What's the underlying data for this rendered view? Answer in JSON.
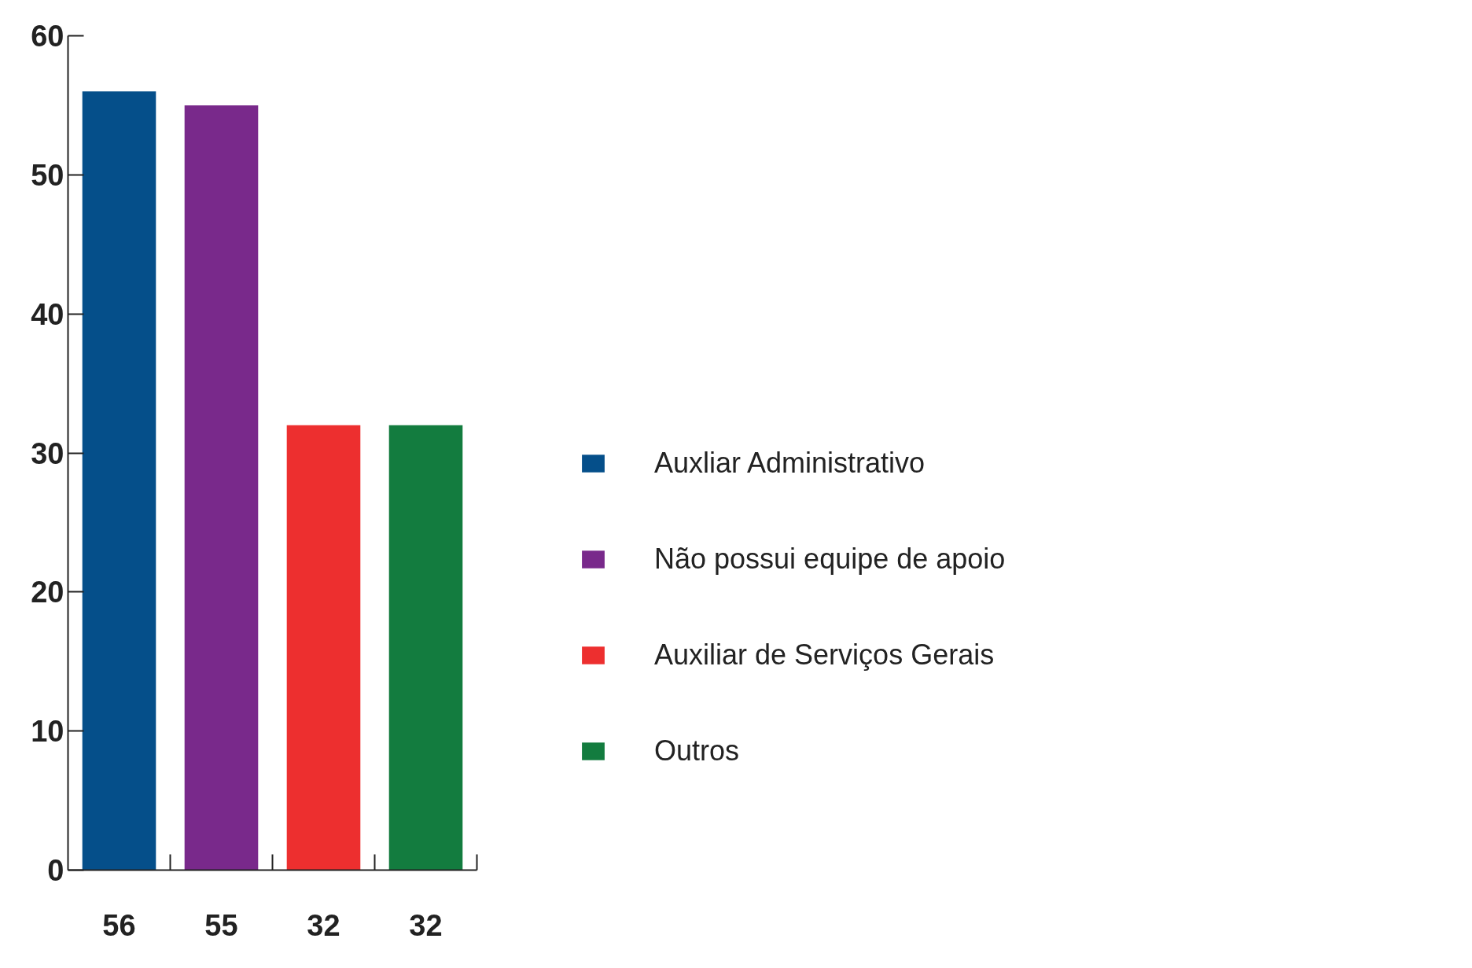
{
  "chart_data": {
    "type": "bar",
    "categories": [
      null,
      null,
      null,
      null
    ],
    "series": [
      {
        "name": "Auxliar Administrativo",
        "color": "#054f8a",
        "values": [
          56,
          null,
          null,
          null
        ]
      },
      {
        "name": "Não possui equipe de apoio",
        "color": "#79298b",
        "values": [
          null,
          55,
          null,
          null
        ]
      },
      {
        "name": "Auxiliar de Serviços Gerais",
        "color": "#ed2f2f",
        "values": [
          null,
          null,
          32,
          null
        ]
      },
      {
        "name": "Outros",
        "color": "#137c3f",
        "values": [
          null,
          null,
          null,
          32
        ]
      }
    ],
    "ylim": [
      0,
      60
    ],
    "yticks": [
      0,
      10,
      20,
      30,
      40,
      50,
      60
    ],
    "data_labels": true,
    "grid": false,
    "legend": "right"
  }
}
